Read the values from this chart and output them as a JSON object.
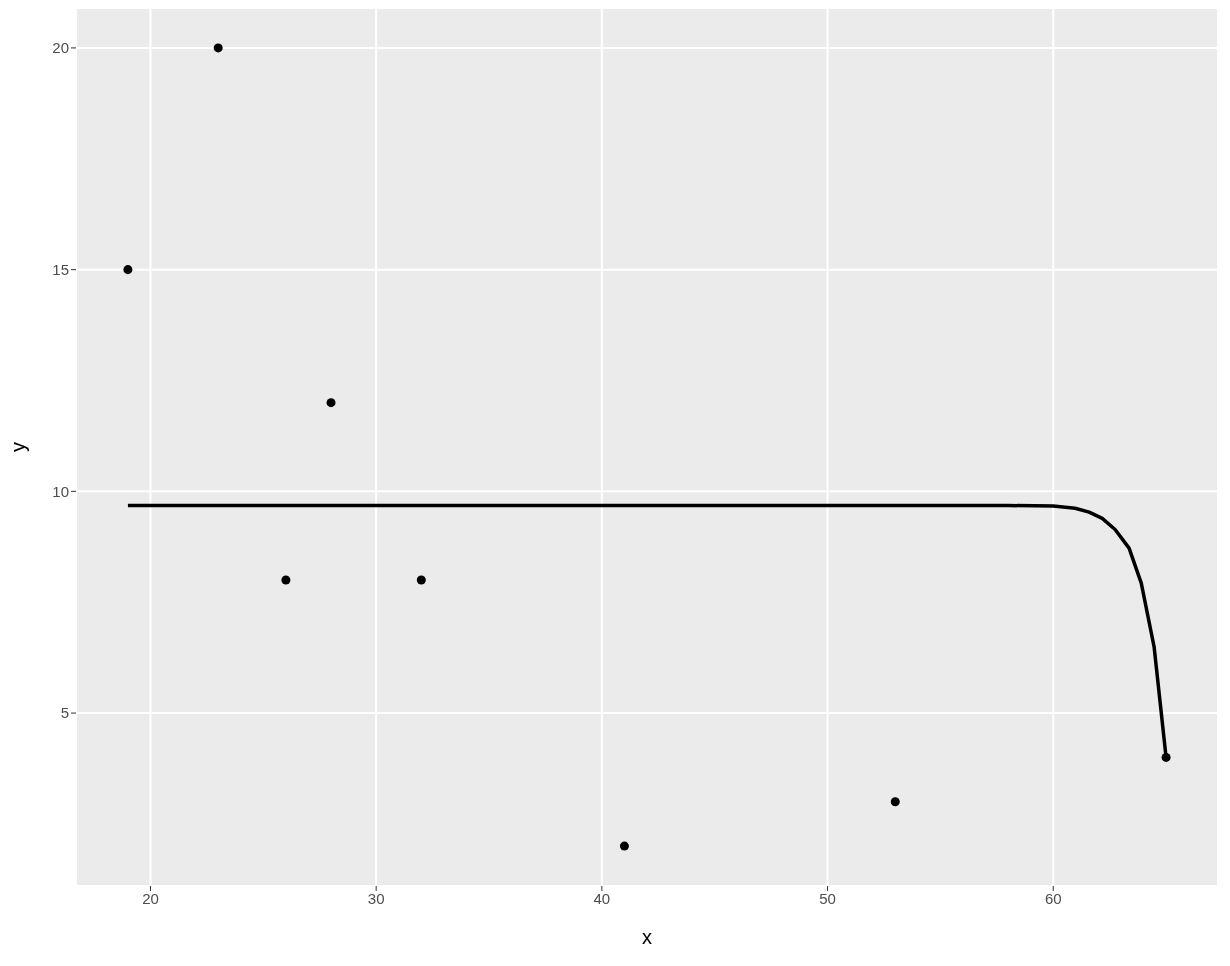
{
  "chart_data": {
    "type": "scatter",
    "xlabel": "x",
    "ylabel": "y",
    "xlim": [
      16.7,
      67.3
    ],
    "ylim": [
      1.1,
      20.9
    ],
    "xticks": [
      20,
      30,
      40,
      50,
      60
    ],
    "yticks": [
      5,
      10,
      15,
      20
    ],
    "grid": true,
    "marker": "circle",
    "series": [
      {
        "color": "#000000",
        "x": [
          19,
          23,
          26,
          28,
          32,
          41,
          53,
          65
        ],
        "values": [
          15,
          20,
          8,
          12,
          8,
          2,
          3,
          4
        ]
      },
      {
        "type": "line",
        "color": "#000000",
        "marker": "none",
        "x": [
          19,
          30,
          40,
          50,
          58,
          60,
          60.97,
          61.59,
          62.17,
          62.74,
          63.36,
          63.9,
          64.47,
          65
        ],
        "values": [
          9.68,
          9.68,
          9.68,
          9.68,
          9.68,
          9.67,
          9.62,
          9.53,
          9.39,
          9.14,
          8.72,
          7.93,
          6.49,
          4
        ]
      }
    ]
  }
}
